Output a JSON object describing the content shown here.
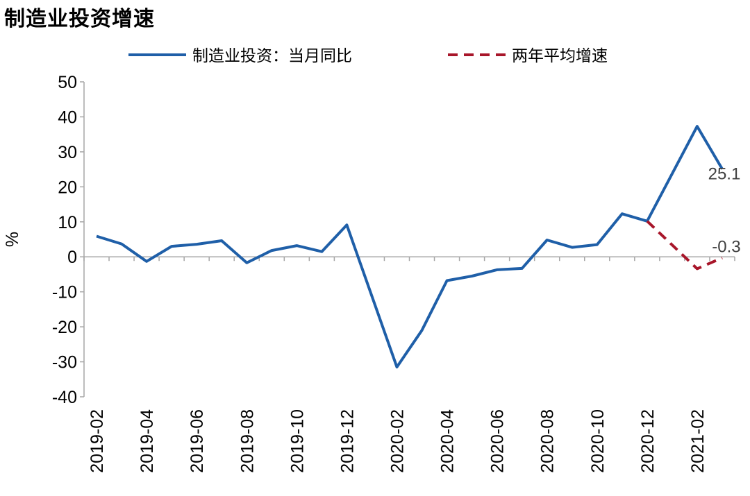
{
  "title": "制造业投资增速",
  "chart_data": {
    "type": "line",
    "ylabel": "%",
    "ylim": [
      -40,
      50
    ],
    "yticks": [
      "50",
      "40",
      "30",
      "20",
      "10",
      "0",
      "-10",
      "-20",
      "-30",
      "-40"
    ],
    "x": [
      "2019-02",
      "2019-03",
      "2019-04",
      "2019-05",
      "2019-06",
      "2019-07",
      "2019-08",
      "2019-09",
      "2019-10",
      "2019-11",
      "2019-12",
      "2020-01",
      "2020-02",
      "2020-03",
      "2020-04",
      "2020-05",
      "2020-06",
      "2020-07",
      "2020-08",
      "2020-09",
      "2020-10",
      "2020-11",
      "2020-12",
      "2021-01",
      "2021-02",
      "2021-03"
    ],
    "xtick_labels": [
      "2019-02",
      "2019-04",
      "2019-06",
      "2019-08",
      "2019-10",
      "2019-12",
      "2020-02",
      "2020-04",
      "2020-06",
      "2020-08",
      "2020-10",
      "2020-12",
      "2021-02"
    ],
    "legend_position": "top",
    "series": [
      {
        "name": "制造业投资：当月同比",
        "color": "#1f5fa8",
        "style": "solid",
        "values": [
          5.9,
          3.7,
          -1.3,
          3.0,
          3.6,
          4.6,
          -1.7,
          1.8,
          3.2,
          1.5,
          9.1,
          null,
          -31.5,
          -21.0,
          -6.8,
          -5.5,
          -3.7,
          -3.3,
          4.8,
          2.7,
          3.5,
          12.3,
          10.2,
          null,
          37.3,
          25.1
        ]
      },
      {
        "name": "两年平均增速",
        "color": "#a8162a",
        "style": "dashed",
        "values": [
          null,
          null,
          null,
          null,
          null,
          null,
          null,
          null,
          null,
          null,
          null,
          null,
          null,
          null,
          null,
          null,
          null,
          null,
          null,
          null,
          null,
          null,
          10.2,
          null,
          -3.4,
          -0.3
        ]
      }
    ],
    "annotations": [
      "25.1",
      "-0.3"
    ]
  }
}
